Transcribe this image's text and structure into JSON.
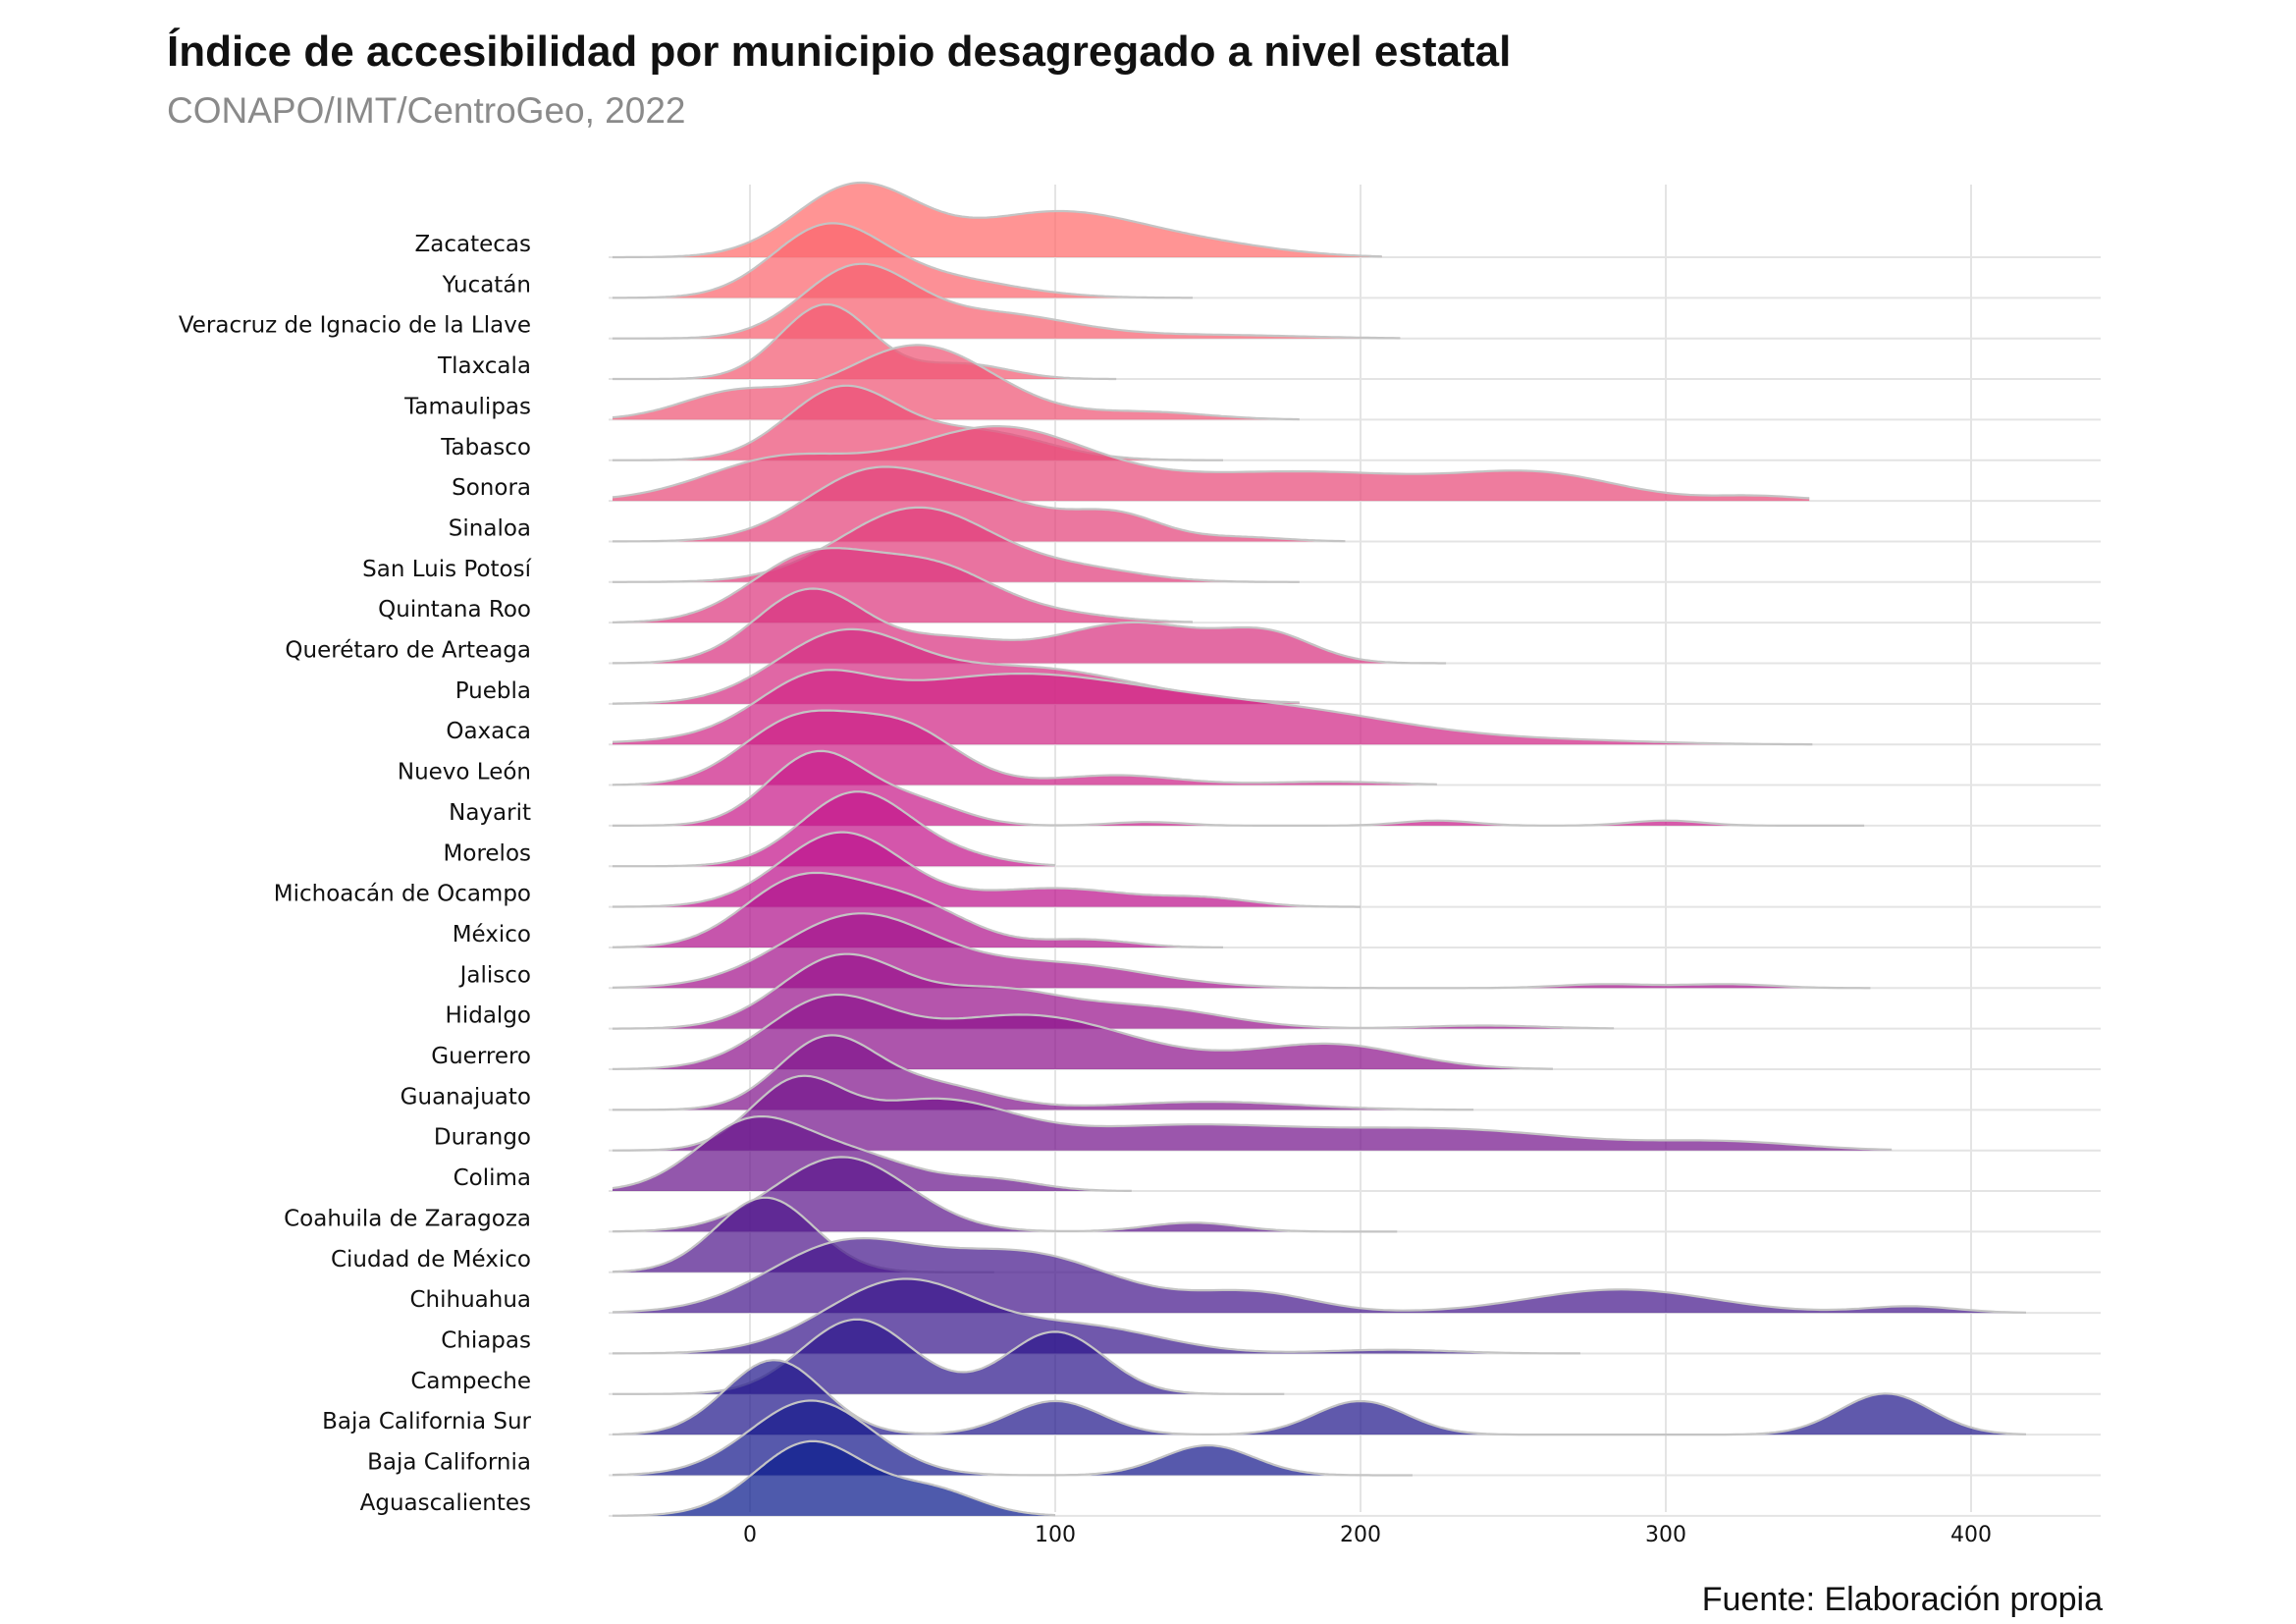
{
  "chart_data": {
    "type": "ridgeline",
    "title": "Índice de accesibilidad por municipio desagregado a nivel estatal",
    "subtitle": "CONAPO/IMT/CentroGeo, 2022",
    "caption": "Fuente: Elaboración propia",
    "xlabel": "",
    "ylabel": "",
    "xlim": [
      -45,
      440
    ],
    "x_ticks": [
      0,
      100,
      200,
      300,
      400
    ],
    "grid": true,
    "legend": "none",
    "gradient_colors": {
      "top": "#ff6b6b",
      "middle": "#c2128c",
      "bottom": "#0a1a8c"
    },
    "series": [
      {
        "name": "Zacatecas",
        "range": [
          -45,
          207
        ],
        "peaks": [
          [
            35,
            1.0,
            20
          ],
          [
            100,
            0.62,
            28
          ],
          [
            150,
            0.15,
            25
          ]
        ]
      },
      {
        "name": "Yucatán",
        "range": [
          -45,
          145
        ],
        "peaks": [
          [
            25,
            1.0,
            18
          ],
          [
            60,
            0.3,
            25
          ]
        ]
      },
      {
        "name": "Veracruz de Ignacio de la Llave",
        "range": [
          -45,
          213
        ],
        "peaks": [
          [
            35,
            1.0,
            18
          ],
          [
            80,
            0.35,
            25
          ],
          [
            150,
            0.05,
            30
          ]
        ]
      },
      {
        "name": "Tlaxcala",
        "range": [
          -45,
          120
        ],
        "peaks": [
          [
            25,
            1.0,
            15
          ],
          [
            70,
            0.2,
            15
          ]
        ]
      },
      {
        "name": "Tamaulipas",
        "range": [
          -45,
          180
        ],
        "peaks": [
          [
            -5,
            0.35,
            18
          ],
          [
            55,
            1.0,
            25
          ],
          [
            130,
            0.1,
            20
          ]
        ]
      },
      {
        "name": "Tabasco",
        "range": [
          -45,
          155
        ],
        "peaks": [
          [
            30,
            1.0,
            18
          ],
          [
            75,
            0.4,
            22
          ]
        ]
      },
      {
        "name": "Sonora",
        "range": [
          -45,
          347
        ],
        "peaks": [
          [
            10,
            0.35,
            25
          ],
          [
            80,
            0.6,
            30
          ],
          [
            180,
            0.25,
            50
          ],
          [
            260,
            0.18,
            25
          ],
          [
            330,
            0.04,
            15
          ]
        ]
      },
      {
        "name": "Sinaloa",
        "range": [
          -45,
          195
        ],
        "peaks": [
          [
            40,
            0.8,
            22
          ],
          [
            80,
            0.4,
            20
          ],
          [
            120,
            0.3,
            15
          ],
          [
            160,
            0.05,
            15
          ]
        ]
      },
      {
        "name": "San Luis Potosí",
        "range": [
          -45,
          180
        ],
        "peaks": [
          [
            55,
            1.0,
            25
          ],
          [
            110,
            0.15,
            20
          ]
        ]
      },
      {
        "name": "Quintana Roo",
        "range": [
          -45,
          145
        ],
        "peaks": [
          [
            20,
            0.8,
            20
          ],
          [
            60,
            0.65,
            20
          ],
          [
            100,
            0.1,
            20
          ]
        ]
      },
      {
        "name": "Querétaro de Arteaga",
        "range": [
          -45,
          228
        ],
        "peaks": [
          [
            20,
            1.0,
            18
          ],
          [
            65,
            0.3,
            18
          ],
          [
            125,
            0.55,
            25
          ],
          [
            170,
            0.35,
            15
          ]
        ]
      },
      {
        "name": "Puebla",
        "range": [
          -45,
          180
        ],
        "peaks": [
          [
            30,
            1.0,
            22
          ],
          [
            90,
            0.55,
            35
          ]
        ]
      },
      {
        "name": "Oaxaca",
        "range": [
          -45,
          348
        ],
        "peaks": [
          [
            20,
            0.4,
            18
          ],
          [
            85,
            0.65,
            50
          ],
          [
            180,
            0.25,
            40
          ],
          [
            270,
            0.03,
            30
          ]
        ]
      },
      {
        "name": "Nuevo León",
        "range": [
          -45,
          225
        ],
        "peaks": [
          [
            15,
            0.95,
            18
          ],
          [
            50,
            0.85,
            18
          ],
          [
            120,
            0.15,
            20
          ],
          [
            190,
            0.05,
            20
          ]
        ]
      },
      {
        "name": "Nayarit",
        "range": [
          -45,
          365
        ],
        "peaks": [
          [
            22,
            1.0,
            16
          ],
          [
            55,
            0.3,
            15
          ],
          [
            130,
            0.05,
            12
          ],
          [
            225,
            0.07,
            12
          ],
          [
            300,
            0.07,
            12
          ]
        ]
      },
      {
        "name": "Morelos",
        "range": [
          -45,
          100
        ],
        "peaks": [
          [
            35,
            1.0,
            18
          ],
          [
            70,
            0.1,
            15
          ]
        ]
      },
      {
        "name": "Michoacán de Ocampo",
        "range": [
          -45,
          200
        ],
        "peaks": [
          [
            30,
            1.0,
            20
          ],
          [
            100,
            0.25,
            25
          ],
          [
            150,
            0.1,
            15
          ]
        ]
      },
      {
        "name": "México",
        "range": [
          -45,
          155
        ],
        "peaks": [
          [
            15,
            0.8,
            18
          ],
          [
            50,
            0.6,
            20
          ],
          [
            110,
            0.1,
            15
          ]
        ]
      },
      {
        "name": "Jalisco",
        "range": [
          -45,
          367
        ],
        "peaks": [
          [
            35,
            0.75,
            25
          ],
          [
            100,
            0.25,
            30
          ],
          [
            280,
            0.04,
            15
          ],
          [
            320,
            0.04,
            15
          ]
        ]
      },
      {
        "name": "Hidalgo",
        "range": [
          -45,
          283
        ],
        "peaks": [
          [
            30,
            0.7,
            20
          ],
          [
            80,
            0.35,
            22
          ],
          [
            130,
            0.2,
            25
          ],
          [
            240,
            0.03,
            20
          ]
        ]
      },
      {
        "name": "Guerrero",
        "range": [
          -45,
          263
        ],
        "peaks": [
          [
            25,
            0.65,
            20
          ],
          [
            90,
            0.55,
            35
          ],
          [
            190,
            0.25,
            25
          ]
        ]
      },
      {
        "name": "Guanajuato",
        "range": [
          -45,
          237
        ],
        "peaks": [
          [
            25,
            0.85,
            16
          ],
          [
            60,
            0.3,
            20
          ],
          [
            150,
            0.1,
            30
          ]
        ]
      },
      {
        "name": "Durango",
        "range": [
          -45,
          374
        ],
        "peaks": [
          [
            15,
            0.8,
            15
          ],
          [
            60,
            0.6,
            25
          ],
          [
            140,
            0.3,
            40
          ],
          [
            230,
            0.25,
            40
          ],
          [
            320,
            0.1,
            25
          ]
        ]
      },
      {
        "name": "Colima",
        "range": [
          -45,
          125
        ],
        "peaks": [
          [
            0,
            0.5,
            18
          ],
          [
            35,
            0.25,
            20
          ],
          [
            80,
            0.08,
            15
          ]
        ]
      },
      {
        "name": "Coahuila de Zaragoza",
        "range": [
          -45,
          212
        ],
        "peaks": [
          [
            30,
            1.0,
            22
          ],
          [
            145,
            0.12,
            15
          ]
        ]
      },
      {
        "name": "Ciudad de México",
        "range": [
          -45,
          80
        ],
        "peaks": [
          [
            5,
            1.0,
            16
          ]
        ]
      },
      {
        "name": "Chihuahua",
        "range": [
          -45,
          418
        ],
        "peaks": [
          [
            30,
            0.5,
            25
          ],
          [
            90,
            0.45,
            30
          ],
          [
            165,
            0.15,
            20
          ],
          [
            285,
            0.18,
            30
          ],
          [
            380,
            0.05,
            15
          ]
        ]
      },
      {
        "name": "Chiapas",
        "range": [
          -45,
          272
        ],
        "peaks": [
          [
            50,
            1.0,
            25
          ],
          [
            110,
            0.35,
            25
          ],
          [
            210,
            0.05,
            20
          ]
        ]
      },
      {
        "name": "Campeche",
        "range": [
          -45,
          175
        ],
        "peaks": [
          [
            35,
            0.9,
            18
          ],
          [
            100,
            0.75,
            16
          ]
        ]
      },
      {
        "name": "Baja California Sur",
        "range": [
          -45,
          418
        ],
        "peaks": [
          [
            8,
            1.0,
            16
          ],
          [
            100,
            0.45,
            15
          ],
          [
            200,
            0.45,
            15
          ],
          [
            372,
            0.55,
            15
          ]
        ]
      },
      {
        "name": "Baja California",
        "range": [
          -45,
          217
        ],
        "peaks": [
          [
            20,
            1.0,
            20
          ],
          [
            150,
            0.4,
            15
          ]
        ]
      },
      {
        "name": "Aguascalientes",
        "range": [
          -45,
          100
        ],
        "peaks": [
          [
            20,
            0.9,
            18
          ],
          [
            60,
            0.3,
            15
          ]
        ]
      }
    ]
  }
}
